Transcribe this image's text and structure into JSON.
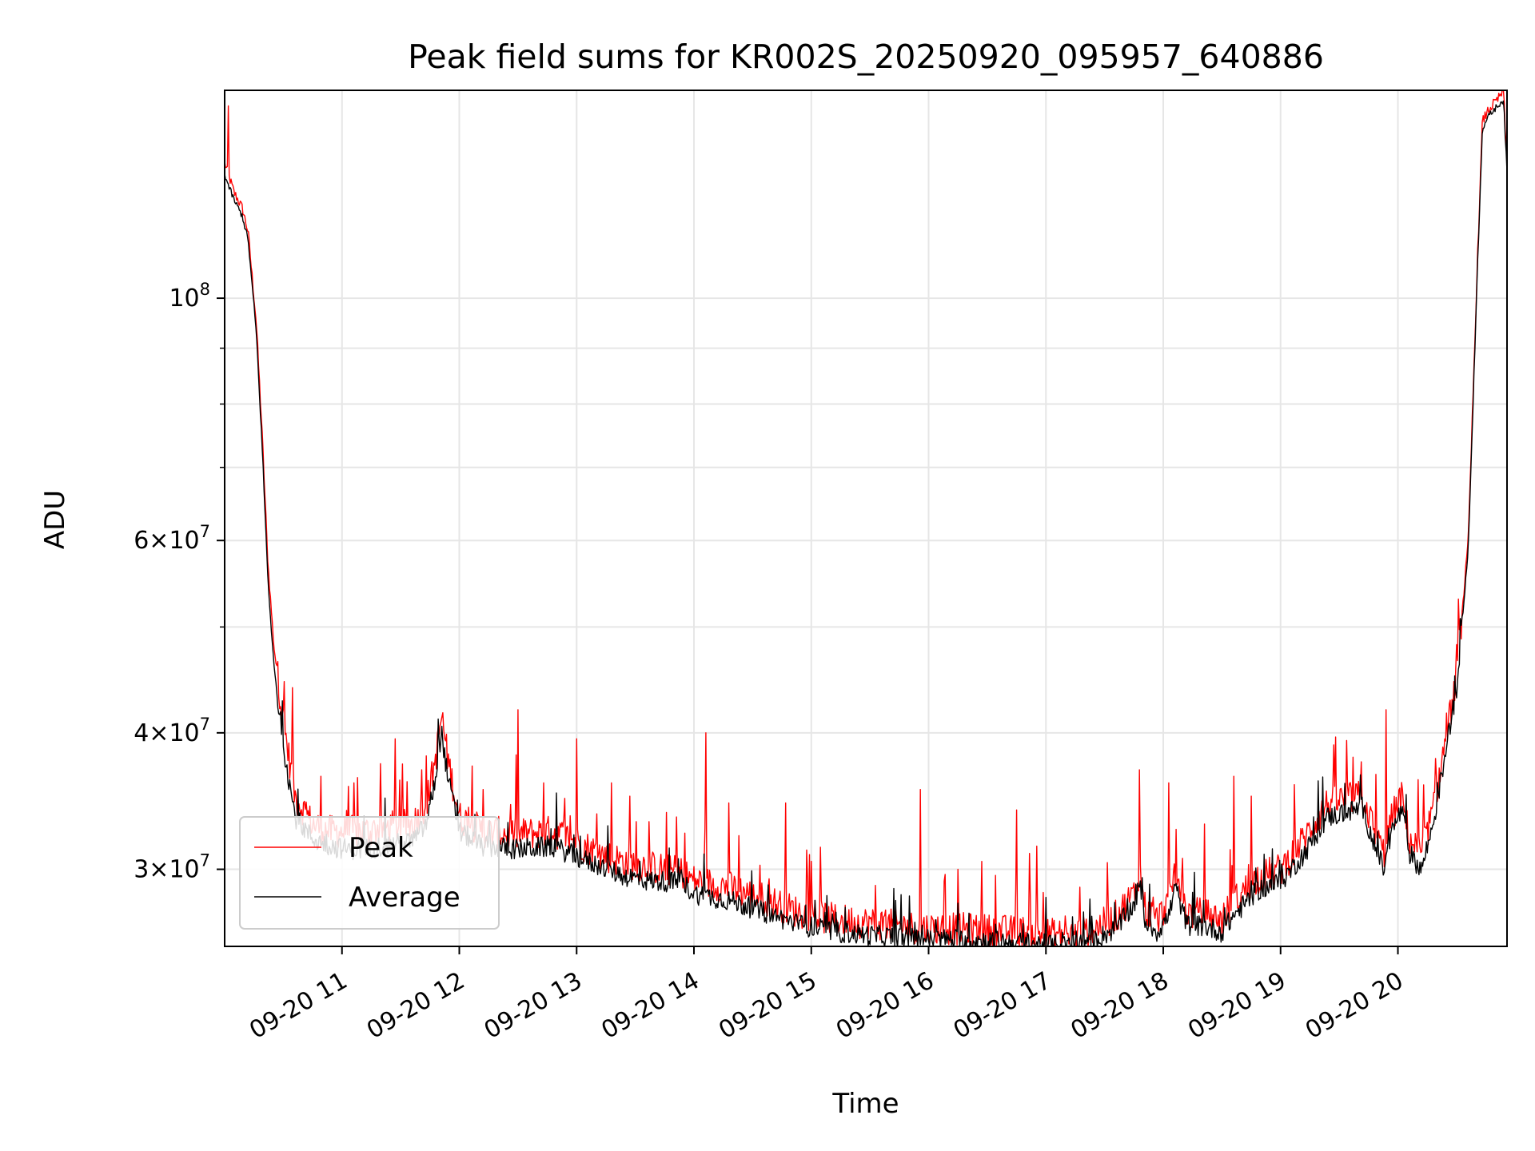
{
  "chart_data": {
    "type": "line",
    "title": "Peak field sums for KR002S_20250920_095957_640886",
    "xlabel": "Time",
    "ylabel": "ADU",
    "yscale": "log",
    "ylim": [
      25500000,
      155000000
    ],
    "xlim": [
      10.0,
      20.93
    ],
    "grid": true,
    "legend_position": "lower-left",
    "x_ticks": [
      {
        "value": 11,
        "label": "09-20 11"
      },
      {
        "value": 12,
        "label": "09-20 12"
      },
      {
        "value": 13,
        "label": "09-20 13"
      },
      {
        "value": 14,
        "label": "09-20 14"
      },
      {
        "value": 15,
        "label": "09-20 15"
      },
      {
        "value": 16,
        "label": "09-20 16"
      },
      {
        "value": 17,
        "label": "09-20 17"
      },
      {
        "value": 18,
        "label": "09-20 18"
      },
      {
        "value": 19,
        "label": "09-20 19"
      },
      {
        "value": 20,
        "label": "09-20 20"
      }
    ],
    "y_ticks": [
      {
        "value": 30000000,
        "mantissa": "3",
        "times": "×",
        "base": "10",
        "exp": "7"
      },
      {
        "value": 40000000,
        "mantissa": "4",
        "times": "×",
        "base": "10",
        "exp": "7"
      },
      {
        "value": 60000000,
        "mantissa": "6",
        "times": "×",
        "base": "10",
        "exp": "7"
      },
      {
        "value": 100000000,
        "mantissa": "",
        "times": "",
        "base": "10",
        "exp": "8"
      }
    ],
    "y_minor_ticks": [
      50000000,
      70000000,
      80000000,
      90000000
    ],
    "series": [
      {
        "name": "Peak",
        "color": "#ff0000",
        "x": [
          10.0,
          10.03,
          10.08,
          10.15,
          10.2,
          10.27,
          10.32,
          10.37,
          10.42,
          10.5,
          10.6,
          10.75,
          10.9,
          11.05,
          11.2,
          11.4,
          11.6,
          11.72,
          11.8,
          11.85,
          11.9,
          12.0,
          12.2,
          12.5,
          12.8,
          13.0,
          13.2,
          13.4,
          13.6,
          13.9,
          14.0,
          14.3,
          14.6,
          14.9,
          15.2,
          15.5,
          15.8,
          16.0,
          16.2,
          16.5,
          16.8,
          17.0,
          17.2,
          17.4,
          17.6,
          17.75,
          17.8,
          17.85,
          17.95,
          18.05,
          18.1,
          18.2,
          18.35,
          18.5,
          18.6,
          18.8,
          19.0,
          19.2,
          19.4,
          19.55,
          19.7,
          19.8,
          19.88,
          19.95,
          20.03,
          20.1,
          20.2,
          20.3,
          20.4,
          20.5,
          20.6,
          20.68,
          20.72,
          20.76,
          20.8,
          20.85,
          20.9,
          20.93
        ],
        "values": [
          133000000,
          130000000,
          125000000,
          121000000,
          115000000,
          95000000,
          75000000,
          57000000,
          48000000,
          41000000,
          35000000,
          33000000,
          32500000,
          32500000,
          32500000,
          32800000,
          33000000,
          34500000,
          38000000,
          41500000,
          38000000,
          33500000,
          32500000,
          32300000,
          32500000,
          31800000,
          31000000,
          30500000,
          30200000,
          29800000,
          29300000,
          28900000,
          28200000,
          27400000,
          27000000,
          26800000,
          26600000,
          26500000,
          26500000,
          26400000,
          26300000,
          26200000,
          26100000,
          26400000,
          27200000,
          28500000,
          30000000,
          27500000,
          27000000,
          28000000,
          30000000,
          27400000,
          27300000,
          27000000,
          28000000,
          29500000,
          30000000,
          32000000,
          34500000,
          34800000,
          35000000,
          32500000,
          31000000,
          33500000,
          35000000,
          32000000,
          31000000,
          34000000,
          39000000,
          45000000,
          60000000,
          110000000,
          145000000,
          148000000,
          150000000,
          152000000,
          155000000,
          132000000
        ],
        "spikes": [
          {
            "x": 10.03,
            "value": 150000000
          },
          {
            "x": 10.58,
            "value": 44000000
          },
          {
            "x": 10.82,
            "value": 36500000
          },
          {
            "x": 11.1,
            "value": 36000000
          },
          {
            "x": 11.45,
            "value": 39500000
          },
          {
            "x": 11.68,
            "value": 37000000
          },
          {
            "x": 12.5,
            "value": 42000000
          },
          {
            "x": 12.2,
            "value": 35500000
          },
          {
            "x": 12.72,
            "value": 36000000
          },
          {
            "x": 13.0,
            "value": 39500000
          },
          {
            "x": 13.3,
            "value": 36000000
          },
          {
            "x": 13.45,
            "value": 35000000
          },
          {
            "x": 13.85,
            "value": 33500000
          },
          {
            "x": 14.1,
            "value": 40000000
          },
          {
            "x": 14.3,
            "value": 34500000
          },
          {
            "x": 14.78,
            "value": 34500000
          },
          {
            "x": 15.55,
            "value": 29000000
          },
          {
            "x": 15.93,
            "value": 35500000
          },
          {
            "x": 16.25,
            "value": 30000000
          },
          {
            "x": 16.45,
            "value": 30500000
          },
          {
            "x": 16.75,
            "value": 34000000
          },
          {
            "x": 16.92,
            "value": 31500000
          },
          {
            "x": 17.8,
            "value": 37000000
          },
          {
            "x": 18.05,
            "value": 36000000
          },
          {
            "x": 18.35,
            "value": 33000000
          },
          {
            "x": 18.6,
            "value": 36500000
          },
          {
            "x": 18.75,
            "value": 35000000
          },
          {
            "x": 19.45,
            "value": 39000000
          },
          {
            "x": 19.62,
            "value": 38000000
          },
          {
            "x": 19.9,
            "value": 42000000
          }
        ]
      },
      {
        "name": "Average",
        "color": "#000000",
        "x": [
          10.0,
          10.03,
          10.08,
          10.15,
          10.2,
          10.27,
          10.32,
          10.37,
          10.42,
          10.5,
          10.6,
          10.75,
          10.9,
          11.05,
          11.2,
          11.4,
          11.6,
          11.72,
          11.8,
          11.85,
          11.9,
          12.0,
          12.2,
          12.5,
          12.8,
          13.0,
          13.2,
          13.4,
          13.6,
          13.9,
          14.0,
          14.3,
          14.6,
          14.9,
          15.2,
          15.5,
          15.8,
          16.0,
          16.2,
          16.5,
          16.8,
          17.0,
          17.2,
          17.4,
          17.6,
          17.75,
          17.8,
          17.85,
          17.95,
          18.05,
          18.1,
          18.2,
          18.35,
          18.5,
          18.6,
          18.8,
          19.0,
          19.2,
          19.4,
          19.55,
          19.7,
          19.8,
          19.88,
          19.95,
          20.03,
          20.1,
          20.2,
          20.3,
          20.4,
          20.5,
          20.6,
          20.68,
          20.72,
          20.76,
          20.8,
          20.85,
          20.9,
          20.93
        ],
        "values": [
          130000000,
          127000000,
          123000000,
          119000000,
          113000000,
          93000000,
          73000000,
          55000000,
          46000000,
          39000000,
          33500000,
          32000000,
          31500000,
          31300000,
          31300000,
          31600000,
          31800000,
          33000000,
          36500000,
          40000000,
          36500000,
          32500000,
          31500000,
          31300000,
          31500000,
          30800000,
          30200000,
          29600000,
          29300000,
          29200000,
          28500000,
          28100000,
          27400000,
          26700000,
          26300000,
          26100000,
          26000000,
          25900000,
          25900000,
          25800000,
          25700000,
          25600000,
          25500000,
          25800000,
          26500000,
          27800000,
          29000000,
          26800000,
          26300000,
          27200000,
          29000000,
          26700000,
          26600000,
          26300000,
          27200000,
          28700000,
          29200000,
          31000000,
          33500000,
          33800000,
          34200000,
          31500000,
          30000000,
          32500000,
          34000000,
          31000000,
          30000000,
          33000000,
          38000000,
          44000000,
          59000000,
          108000000,
          143000000,
          146000000,
          148000000,
          150000000,
          152000000,
          130000000
        ]
      }
    ],
    "legend": [
      {
        "label": "Peak",
        "color": "#ff0000"
      },
      {
        "label": "Average",
        "color": "#000000"
      }
    ]
  }
}
